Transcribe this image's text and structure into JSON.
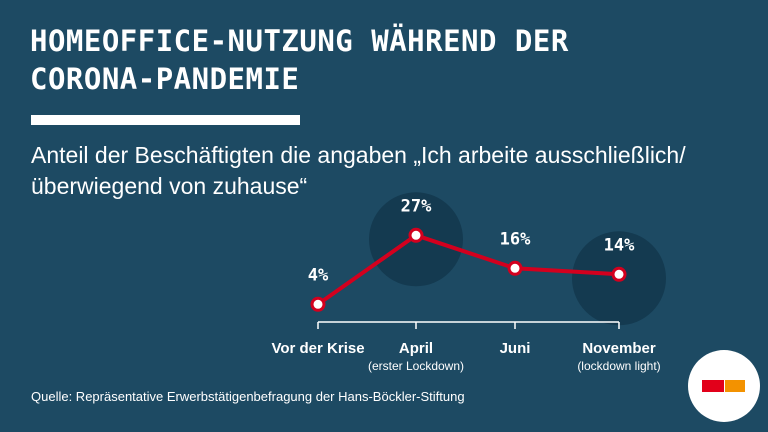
{
  "header": {
    "title_line1": "Homeoffice-Nutzung während der",
    "title_line2": "Corona-Pandemie",
    "subtitle_line1": "Anteil der Beschäftigten die angaben „Ich arbeite ausschließlich/",
    "subtitle_line2": "überwiegend von zuhause“"
  },
  "chart_data": {
    "type": "line",
    "title": "Homeoffice-Nutzung während der Corona-Pandemie",
    "categories": [
      "Vor der Krise",
      "April",
      "Juni",
      "November"
    ],
    "category_sublabels": [
      "",
      "(erster Lockdown)",
      "",
      "(lockdown light)"
    ],
    "series": [
      {
        "values": [
          4,
          27,
          16,
          14
        ]
      }
    ],
    "value_labels": [
      "4%",
      "27%",
      "16%",
      "14%"
    ],
    "highlighted_categories": [
      "April",
      "November"
    ],
    "unit": "%",
    "grid": false,
    "legend": "none"
  },
  "footer": {
    "source": "Quelle: Repräsentative Erwerbstätigenbefragung der Hans-Böckler-Stiftung"
  },
  "colors": {
    "background": "#1d4a63",
    "line": "#d3001e",
    "highlight_circle": "#143a50",
    "text": "#ffffff",
    "logo_red": "#e2001a",
    "logo_orange": "#f39200"
  },
  "logo": {
    "icon": "hans-boeckler-stiftung-logo"
  }
}
